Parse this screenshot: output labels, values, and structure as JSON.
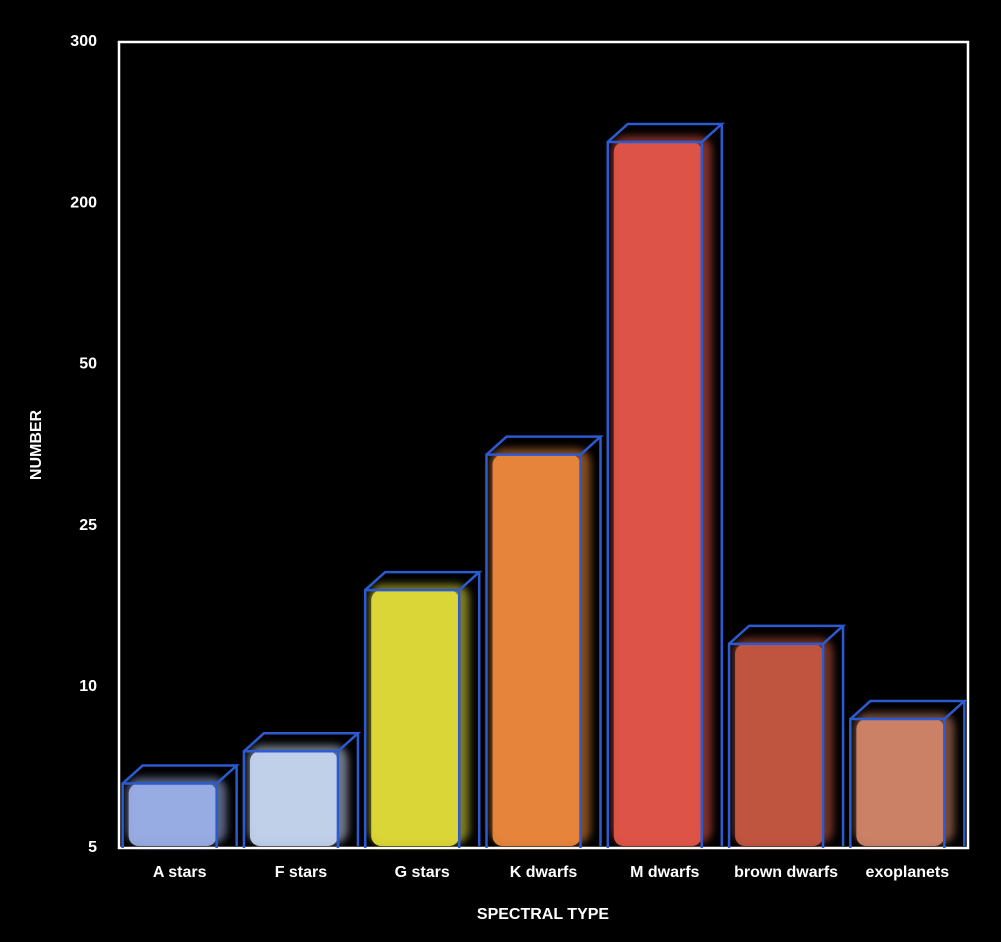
{
  "chart_data": {
    "type": "bar",
    "categories": [
      "A stars",
      "F stars",
      "G stars",
      "K dwarfs",
      "M dwarfs",
      "brown dwarfs",
      "exoplanets"
    ],
    "values": [
      7,
      8,
      19,
      36,
      238,
      14,
      9
    ],
    "colors": [
      "#9fb4ec",
      "#c9d9f4",
      "#e6e03a",
      "#f28b3e",
      "#e8584a",
      "#c95a42",
      "#d5876a"
    ],
    "ylim": [
      5,
      300
    ],
    "yticks": [
      5,
      10,
      25,
      50,
      200,
      300
    ],
    "x_label": "SPECTRAL TYPE",
    "y_label": "NUMBER",
    "grid": false
  }
}
